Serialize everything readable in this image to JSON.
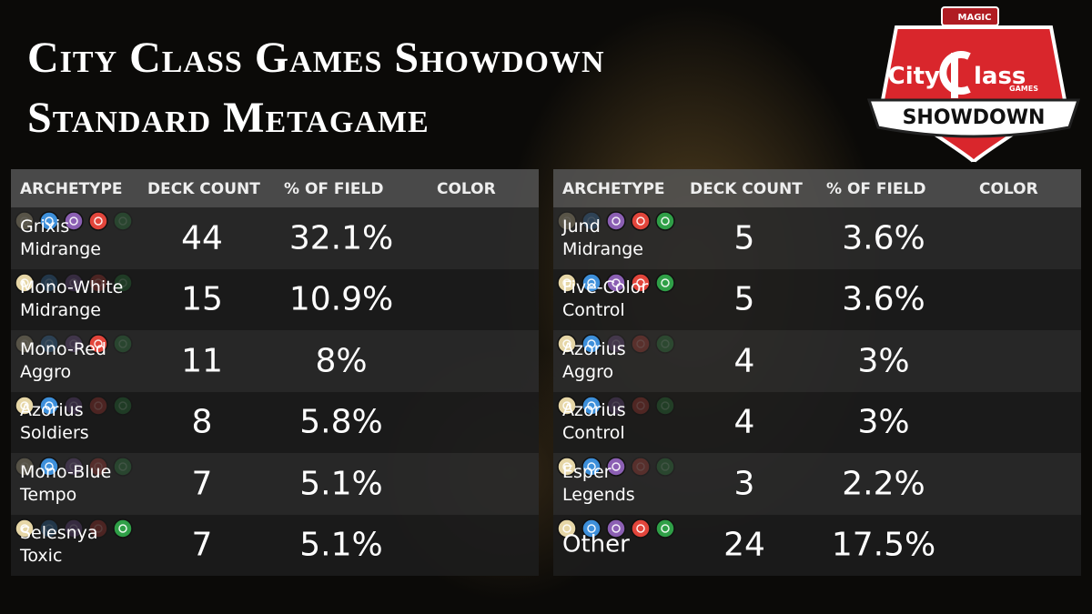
{
  "header": {
    "title_line1": "City Class Games Showdown",
    "title_line2": "Standard Metagame"
  },
  "logo": {
    "brand": "MAGIC",
    "city": "City",
    "class": "lass",
    "games": "GAMES",
    "banner": "SHOWDOWN"
  },
  "pip_colors": [
    "#e6d6a6",
    "#3d8fda",
    "#8b5fb3",
    "#e2453b",
    "#2f9f47"
  ],
  "tables": [
    {
      "columns": [
        "ARCHETYPE",
        "DECK COUNT",
        "% OF FIELD",
        "COLOR"
      ],
      "rows": [
        {
          "archetype": [
            "Grixis",
            "Midrange"
          ],
          "count": "44",
          "share": "32.1%",
          "colors": [
            false,
            true,
            true,
            true,
            false
          ]
        },
        {
          "archetype": [
            "Mono-White",
            "Midrange"
          ],
          "count": "15",
          "share": "10.9%",
          "colors": [
            true,
            false,
            false,
            false,
            false
          ]
        },
        {
          "archetype": [
            "Mono-Red",
            "Aggro"
          ],
          "count": "11",
          "share": "8%",
          "colors": [
            false,
            false,
            false,
            true,
            false
          ]
        },
        {
          "archetype": [
            "Azorius",
            "Soldiers"
          ],
          "count": "8",
          "share": "5.8%",
          "colors": [
            true,
            true,
            false,
            false,
            false
          ]
        },
        {
          "archetype": [
            "Mono-Blue",
            "Tempo"
          ],
          "count": "7",
          "share": "5.1%",
          "colors": [
            false,
            true,
            false,
            false,
            false
          ]
        },
        {
          "archetype": [
            "Selesnya",
            "Toxic"
          ],
          "count": "7",
          "share": "5.1%",
          "colors": [
            true,
            false,
            false,
            false,
            true
          ]
        }
      ]
    },
    {
      "columns": [
        "ARCHETYPE",
        "DECK COUNT",
        "% OF FIELD",
        "COLOR"
      ],
      "rows": [
        {
          "archetype": [
            "Jund",
            "Midrange"
          ],
          "count": "5",
          "share": "3.6%",
          "colors": [
            false,
            false,
            true,
            true,
            true
          ]
        },
        {
          "archetype": [
            "Five-Color",
            "Control"
          ],
          "count": "5",
          "share": "3.6%",
          "colors": [
            true,
            true,
            true,
            true,
            true
          ]
        },
        {
          "archetype": [
            "Azorius",
            "Aggro"
          ],
          "count": "4",
          "share": "3%",
          "colors": [
            true,
            true,
            false,
            false,
            false
          ]
        },
        {
          "archetype": [
            "Azorius",
            "Control"
          ],
          "count": "4",
          "share": "3%",
          "colors": [
            true,
            true,
            false,
            false,
            false
          ]
        },
        {
          "archetype": [
            "Esper",
            "Legends"
          ],
          "count": "3",
          "share": "2.2%",
          "colors": [
            true,
            true,
            true,
            false,
            false
          ]
        },
        {
          "archetype": [
            "Other"
          ],
          "count": "24",
          "share": "17.5%",
          "colors": [
            true,
            true,
            true,
            true,
            true
          ]
        }
      ]
    }
  ]
}
